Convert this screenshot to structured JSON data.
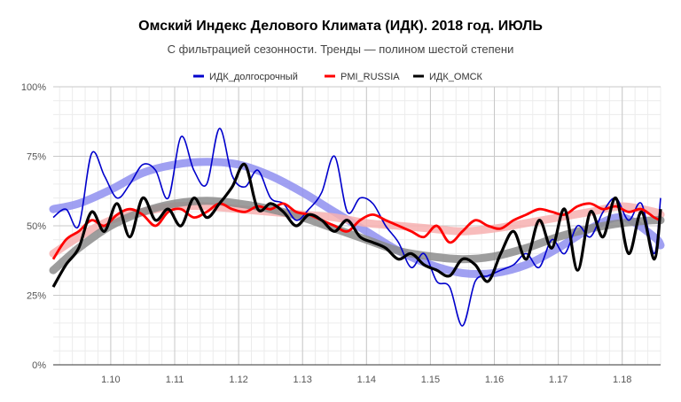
{
  "chart_data": {
    "type": "line",
    "title": "Омский Индекс Делового Климата (ИДК). 2018 год. ИЮЛЬ",
    "subtitle": "С фильтрацией сезонности. Тренды — полином шестой степени",
    "xlabel": "",
    "ylabel": "",
    "xlim": [
      1.091,
      1.186
    ],
    "ylim": [
      0,
      100
    ],
    "x_ticks": [
      "1.10",
      "1.11",
      "1.12",
      "1.13",
      "1.14",
      "1.15",
      "1.16",
      "1.17",
      "1.18"
    ],
    "y_ticks": [
      "0%",
      "25%",
      "50%",
      "75%",
      "100%"
    ],
    "grid": true,
    "legend_position": "top",
    "series": [
      {
        "name": "ИДК_долгосрочный",
        "color": "#0000cc",
        "x": [
          1.091,
          1.093,
          1.095,
          1.097,
          1.099,
          1.101,
          1.103,
          1.105,
          1.107,
          1.109,
          1.111,
          1.113,
          1.115,
          1.117,
          1.119,
          1.121,
          1.123,
          1.125,
          1.127,
          1.129,
          1.131,
          1.133,
          1.135,
          1.137,
          1.139,
          1.141,
          1.143,
          1.145,
          1.147,
          1.149,
          1.151,
          1.153,
          1.155,
          1.157,
          1.159,
          1.161,
          1.163,
          1.165,
          1.167,
          1.169,
          1.171,
          1.173,
          1.175,
          1.177,
          1.179,
          1.181,
          1.183,
          1.185,
          1.186
        ],
        "values": [
          53,
          56,
          50,
          76,
          68,
          60,
          65,
          72,
          70,
          60,
          82,
          70,
          65,
          85,
          68,
          64,
          70,
          60,
          58,
          52,
          56,
          62,
          75,
          55,
          60,
          58,
          50,
          44,
          35,
          40,
          30,
          28,
          14,
          30,
          32,
          34,
          36,
          40,
          35,
          45,
          40,
          50,
          46,
          55,
          60,
          52,
          58,
          40,
          60
        ],
        "trend": {
          "x": [
            1.091,
            1.095,
            1.1,
            1.105,
            1.11,
            1.115,
            1.12,
            1.125,
            1.13,
            1.135,
            1.14,
            1.145,
            1.15,
            1.155,
            1.16,
            1.165,
            1.17,
            1.175,
            1.18,
            1.185,
            1.186
          ],
          "values": [
            56,
            58,
            63,
            69,
            72,
            73,
            72,
            68,
            62,
            55,
            48,
            41,
            36,
            33,
            33,
            36,
            42,
            49,
            53,
            46,
            43
          ]
        }
      },
      {
        "name": "PMI_RUSSIA",
        "color": "#ff0000",
        "x": [
          1.091,
          1.093,
          1.095,
          1.097,
          1.099,
          1.101,
          1.103,
          1.105,
          1.107,
          1.109,
          1.111,
          1.113,
          1.115,
          1.117,
          1.119,
          1.121,
          1.123,
          1.125,
          1.127,
          1.129,
          1.131,
          1.133,
          1.135,
          1.137,
          1.139,
          1.141,
          1.143,
          1.145,
          1.147,
          1.149,
          1.151,
          1.153,
          1.155,
          1.157,
          1.159,
          1.161,
          1.163,
          1.165,
          1.167,
          1.169,
          1.171,
          1.173,
          1.175,
          1.177,
          1.179,
          1.181,
          1.183,
          1.185,
          1.186
        ],
        "values": [
          38,
          45,
          48,
          52,
          50,
          54,
          56,
          54,
          50,
          55,
          56,
          53,
          55,
          58,
          56,
          55,
          57,
          56,
          58,
          55,
          54,
          52,
          50,
          48,
          52,
          54,
          52,
          50,
          48,
          46,
          50,
          44,
          48,
          52,
          50,
          49,
          52,
          54,
          56,
          55,
          54,
          57,
          58,
          56,
          57,
          55,
          56,
          53,
          52
        ],
        "trend": {
          "x": [
            1.091,
            1.095,
            1.1,
            1.105,
            1.11,
            1.115,
            1.12,
            1.125,
            1.13,
            1.135,
            1.14,
            1.145,
            1.15,
            1.155,
            1.16,
            1.165,
            1.17,
            1.175,
            1.18,
            1.185,
            1.186
          ],
          "values": [
            40,
            46,
            52,
            55,
            57,
            57,
            56,
            55,
            54,
            53,
            51,
            50,
            49,
            48,
            49,
            51,
            53,
            55,
            57,
            55,
            54
          ]
        }
      },
      {
        "name": "ИДК_ОМСК",
        "color": "#000000",
        "x": [
          1.091,
          1.093,
          1.095,
          1.097,
          1.099,
          1.101,
          1.103,
          1.105,
          1.107,
          1.109,
          1.111,
          1.113,
          1.115,
          1.117,
          1.119,
          1.121,
          1.123,
          1.125,
          1.127,
          1.129,
          1.131,
          1.133,
          1.135,
          1.137,
          1.139,
          1.141,
          1.143,
          1.145,
          1.147,
          1.149,
          1.151,
          1.153,
          1.155,
          1.157,
          1.159,
          1.161,
          1.163,
          1.165,
          1.167,
          1.169,
          1.171,
          1.173,
          1.175,
          1.177,
          1.179,
          1.181,
          1.183,
          1.185,
          1.186
        ],
        "values": [
          28,
          36,
          42,
          55,
          48,
          58,
          46,
          60,
          52,
          56,
          50,
          60,
          53,
          58,
          64,
          72,
          56,
          58,
          55,
          50,
          54,
          52,
          48,
          52,
          46,
          44,
          42,
          38,
          40,
          36,
          34,
          32,
          38,
          36,
          30,
          40,
          48,
          38,
          52,
          42,
          56,
          34,
          55,
          46,
          60,
          40,
          55,
          38,
          56
        ],
        "trend": {
          "x": [
            1.091,
            1.095,
            1.1,
            1.105,
            1.11,
            1.115,
            1.12,
            1.125,
            1.13,
            1.135,
            1.14,
            1.145,
            1.15,
            1.155,
            1.16,
            1.165,
            1.17,
            1.175,
            1.18,
            1.185,
            1.186
          ],
          "values": [
            34,
            42,
            50,
            55,
            58,
            59,
            58,
            56,
            53,
            49,
            45,
            41,
            39,
            38,
            39,
            42,
            46,
            49,
            51,
            52,
            52
          ]
        }
      }
    ]
  }
}
